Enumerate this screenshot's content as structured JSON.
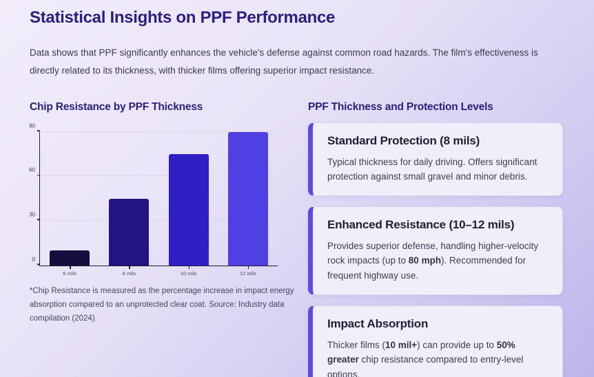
{
  "page": {
    "title": "Statistical Insights on PPF Performance",
    "intro": "Data shows that PPF significantly enhances the vehicle's defense against common road hazards. The film's effectiveness is directly related to its thickness, with thicker films offering superior impact resistance."
  },
  "chart_section": {
    "heading": "Chip Resistance by PPF Thickness",
    "footnote": "*Chip Resistance is measured as the percentage increase in impact energy absorption compared to an unprotected clear coat. Source: Industry data compilation (2024)."
  },
  "chart_data": {
    "type": "bar",
    "title": "Chip Resistance by PPF Thickness",
    "categories": [
      "6 mils",
      "8 mils",
      "10 mils",
      "12 mils"
    ],
    "values": [
      10,
      45,
      75,
      90
    ],
    "bar_colors": [
      "#150f3f",
      "#211584",
      "#2f1fc4",
      "#4e40e2"
    ],
    "xlabel": "",
    "ylabel": "",
    "ylim": [
      0,
      90
    ],
    "yticks": [
      0,
      30,
      60,
      90
    ],
    "grid": true,
    "legend": false,
    "gridline_color": "#dcd8ea",
    "axis_color": "#1d1b33"
  },
  "cards_section": {
    "heading": "PPF Thickness and Protection Levels",
    "accent_color": "#5a4ee2",
    "cards": [
      {
        "title": "Standard Protection (8 mils)",
        "body_parts": [
          {
            "text": "Typical thickness for daily driving. Offers significant protection against small gravel and minor debris.",
            "bold": false
          }
        ]
      },
      {
        "title": "Enhanced Resistance (10–12 mils)",
        "body_parts": [
          {
            "text": "Provides superior defense, handling higher-velocity rock impacts (up to ",
            "bold": false
          },
          {
            "text": "80 mph",
            "bold": true
          },
          {
            "text": "). Recommended for frequent highway use.",
            "bold": false
          }
        ]
      },
      {
        "title": "Impact Absorption",
        "body_parts": [
          {
            "text": "Thicker films (",
            "bold": false
          },
          {
            "text": "10 mil+",
            "bold": true
          },
          {
            "text": ") can provide up to ",
            "bold": false
          },
          {
            "text": "50% greater",
            "bold": true
          },
          {
            "text": " chip resistance compared to entry-level options.",
            "bold": false
          }
        ]
      }
    ]
  }
}
